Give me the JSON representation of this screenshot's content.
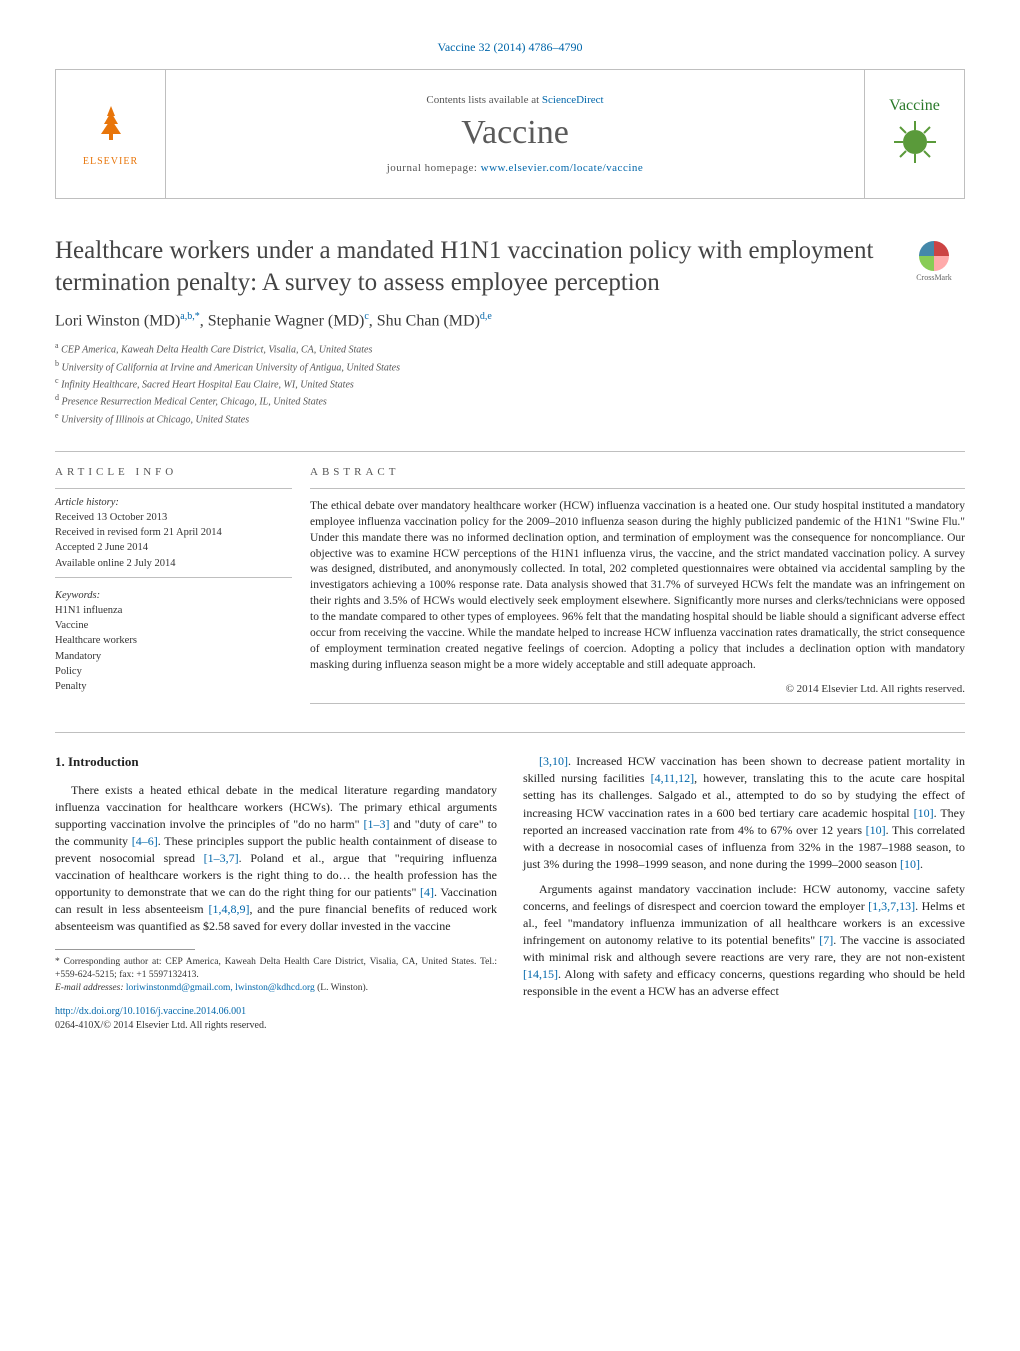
{
  "header": {
    "citation": "Vaccine 32 (2014) 4786–4790",
    "contents_prefix": "Contents lists available at ",
    "contents_link": "ScienceDirect",
    "journal": "Vaccine",
    "homepage_prefix": "journal homepage: ",
    "homepage_url": "www.elsevier.com/locate/vaccine",
    "publisher": "ELSEVIER",
    "cover_label": "Vaccine",
    "crossmark": "CrossMark"
  },
  "article": {
    "title": "Healthcare workers under a mandated H1N1 vaccination policy with employment termination penalty: A survey to assess employee perception",
    "authors_html": "Lori Winston (MD)<sup>a,b,*</sup>, Stephanie Wagner (MD)<sup>c</sup>, Shu Chan (MD)<sup>d,e</sup>",
    "affiliations": [
      "CEP America, Kaweah Delta Health Care District, Visalia, CA, United States",
      "University of California at Irvine and American University of Antigua, United States",
      "Infinity Healthcare, Sacred Heart Hospital Eau Claire, WI, United States",
      "Presence Resurrection Medical Center, Chicago, IL, United States",
      "University of Illinois at Chicago, United States"
    ],
    "affil_markers": [
      "a",
      "b",
      "c",
      "d",
      "e"
    ],
    "info_head": "article info",
    "abstract_head": "abstract",
    "history_label": "Article history:",
    "history": [
      "Received 13 October 2013",
      "Received in revised form 21 April 2014",
      "Accepted 2 June 2014",
      "Available online 2 July 2014"
    ],
    "keywords_label": "Keywords:",
    "keywords": [
      "H1N1 influenza",
      "Vaccine",
      "Healthcare workers",
      "Mandatory",
      "Policy",
      "Penalty"
    ],
    "abstract": "The ethical debate over mandatory healthcare worker (HCW) influenza vaccination is a heated one. Our study hospital instituted a mandatory employee influenza vaccination policy for the 2009–2010 influenza season during the highly publicized pandemic of the H1N1 \"Swine Flu.\" Under this mandate there was no informed declination option, and termination of employment was the consequence for noncompliance. Our objective was to examine HCW perceptions of the H1N1 influenza virus, the vaccine, and the strict mandated vaccination policy. A survey was designed, distributed, and anonymously collected. In total, 202 completed questionnaires were obtained via accidental sampling by the investigators achieving a 100% response rate. Data analysis showed that 31.7% of surveyed HCWs felt the mandate was an infringement on their rights and 3.5% of HCWs would electively seek employment elsewhere. Significantly more nurses and clerks/technicians were opposed to the mandate compared to other types of employees. 96% felt that the mandating hospital should be liable should a significant adverse effect occur from receiving the vaccine. While the mandate helped to increase HCW influenza vaccination rates dramatically, the strict consequence of employment termination created negative feelings of coercion. Adopting a policy that includes a declination option with mandatory masking during influenza season might be a more widely acceptable and still adequate approach.",
    "copyright": "© 2014 Elsevier Ltd. All rights reserved."
  },
  "body": {
    "section1_head": "1. Introduction",
    "para1": "There exists a heated ethical debate in the medical literature regarding mandatory influenza vaccination for healthcare workers (HCWs). The primary ethical arguments supporting vaccination involve the principles of \"do no harm\" [1–3] and \"duty of care\" to the community [4–6]. These principles support the public health containment of disease to prevent nosocomial spread [1–3,7]. Poland et al., argue that \"requiring influenza vaccination of healthcare workers is the right thing to do… the health profession has the opportunity to demonstrate that we can do the right thing for our patients\" [4]. Vaccination can result in less absenteeism [1,4,8,9], and the pure financial benefits of reduced work absenteeism was quantified as $2.58 saved for every dollar invested in the vaccine",
    "para2": "[3,10]. Increased HCW vaccination has been shown to decrease patient mortality in skilled nursing facilities [4,11,12], however, translating this to the acute care hospital setting has its challenges. Salgado et al., attempted to do so by studying the effect of increasing HCW vaccination rates in a 600 bed tertiary care academic hospital [10]. They reported an increased vaccination rate from 4% to 67% over 12 years [10]. This correlated with a decrease in nosocomial cases of influenza from 32% in the 1987–1988 season, to just 3% during the 1998–1999 season, and none during the 1999–2000 season [10].",
    "para3": "Arguments against mandatory vaccination include: HCW autonomy, vaccine safety concerns, and feelings of disrespect and coercion toward the employer [1,3,7,13]. Helms et al., feel \"mandatory influenza immunization of all healthcare workers is an excessive infringement on autonomy relative to its potential benefits\" [7]. The vaccine is associated with minimal risk and although severe reactions are very rare, they are not non-existent [14,15]. Along with safety and efficacy concerns, questions regarding who should be held responsible in the event a HCW has an adverse effect"
  },
  "footnotes": {
    "corr": "Corresponding author at: CEP America, Kaweah Delta Health Care District, Visalia, CA, United States. Tel.: +559-624-5215; fax: +1 5597132413.",
    "email_label": "E-mail addresses:",
    "emails": "loriwinstonmd@gmail.com, lwinston@kdhcd.org",
    "email_attrib": "(L. Winston).",
    "doi": "http://dx.doi.org/10.1016/j.vaccine.2014.06.001",
    "issn": "0264-410X/© 2014 Elsevier Ltd. All rights reserved."
  },
  "colors": {
    "link": "#0066aa",
    "rule": "#bfbfbf",
    "elsevier": "#e8750a",
    "cover": "#2a7a2a"
  }
}
